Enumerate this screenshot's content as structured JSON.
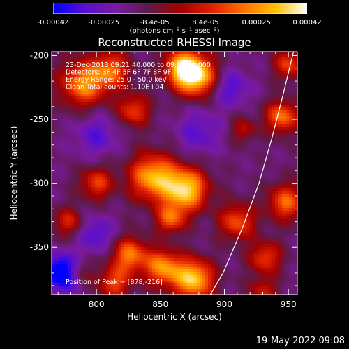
{
  "colorbar": {
    "tick_labels": [
      "-0.00042",
      "-0.00025",
      "-8.4e-05",
      "8.4e-05",
      "0.00025",
      "0.00042"
    ],
    "units_label": "(photons cm⁻² s⁻¹ asec⁻²)",
    "range": [
      -0.00042,
      0.00042
    ],
    "colors": [
      "#0000ff",
      "#5a0fcf",
      "#7a1aa0",
      "#5e1a4a",
      "#a00000",
      "#e02000",
      "#ff7000",
      "#ffc000",
      "#ffffff"
    ]
  },
  "chart_data": {
    "type": "heatmap",
    "title": "Reconstructed RHESSI Image",
    "xlabel": "Heliocentric X (arcsec)",
    "ylabel": "Heliocentric Y (arcsec)",
    "xlim": [
      765,
      957
    ],
    "ylim": [
      -387,
      -197
    ],
    "x_ticks": [
      800,
      850,
      900,
      950
    ],
    "y_ticks": [
      -200,
      -250,
      -300,
      -350
    ],
    "annotations": [
      "23-Dec-2013 09:21:40.000 to 09:27:40.000",
      "Detectors: 3F 4F 5F 6F 7F 8F 9F",
      "Energy Range: 25.0 - 50.0 keV",
      "Clean    Total counts: 1.10E+04"
    ],
    "peak_label": "Position of Peak = [878,-216]",
    "peak_position": [
      878,
      -216
    ],
    "sources": [
      {
        "x": 878,
        "y": -216,
        "amp": 1.0,
        "sigma": 11
      },
      {
        "x": 866,
        "y": -209,
        "amp": 0.7,
        "sigma": 10
      },
      {
        "x": 790,
        "y": -222,
        "amp": 0.75,
        "sigma": 13
      },
      {
        "x": 812,
        "y": -211,
        "amp": 0.6,
        "sigma": 10
      },
      {
        "x": 829,
        "y": -243,
        "amp": 0.55,
        "sigma": 9
      },
      {
        "x": 844,
        "y": -295,
        "amp": 0.85,
        "sigma": 13
      },
      {
        "x": 870,
        "y": -305,
        "amp": 0.95,
        "sigma": 12
      },
      {
        "x": 858,
        "y": -328,
        "amp": 0.6,
        "sigma": 8
      },
      {
        "x": 800,
        "y": -300,
        "amp": 0.55,
        "sigma": 9
      },
      {
        "x": 778,
        "y": -330,
        "amp": 0.45,
        "sigma": 8
      },
      {
        "x": 826,
        "y": -356,
        "amp": 0.7,
        "sigma": 10
      },
      {
        "x": 852,
        "y": -366,
        "amp": 0.75,
        "sigma": 10
      },
      {
        "x": 876,
        "y": -375,
        "amp": 0.95,
        "sigma": 11
      },
      {
        "x": 814,
        "y": -378,
        "amp": 0.55,
        "sigma": 9
      },
      {
        "x": 785,
        "y": -370,
        "amp": 0.45,
        "sigma": 8
      },
      {
        "x": 910,
        "y": -330,
        "amp": 0.6,
        "sigma": 10
      },
      {
        "x": 945,
        "y": -248,
        "amp": 0.7,
        "sigma": 9
      },
      {
        "x": 948,
        "y": -315,
        "amp": 0.65,
        "sigma": 10
      },
      {
        "x": 932,
        "y": -358,
        "amp": 0.55,
        "sigma": 9
      },
      {
        "x": 950,
        "y": -207,
        "amp": 0.55,
        "sigma": 8
      },
      {
        "x": 915,
        "y": -258,
        "amp": 0.35,
        "sigma": 7
      },
      {
        "x": 930,
        "y": -385,
        "amp": 0.4,
        "sigma": 8
      }
    ],
    "negative_regions": [
      {
        "x": 775,
        "y": -370,
        "amp": 0.85,
        "sigma": 10
      },
      {
        "x": 800,
        "y": -340,
        "amp": 0.35,
        "sigma": 10
      },
      {
        "x": 880,
        "y": -260,
        "amp": 0.3,
        "sigma": 12
      },
      {
        "x": 905,
        "y": -225,
        "amp": 0.35,
        "sigma": 10
      },
      {
        "x": 800,
        "y": -262,
        "amp": 0.3,
        "sigma": 12
      }
    ],
    "limb_curve": [
      [
        954,
        -197
      ],
      [
        946,
        -230
      ],
      [
        937,
        -265
      ],
      [
        927,
        -300
      ],
      [
        914,
        -335
      ],
      [
        899,
        -370
      ],
      [
        889,
        -387
      ]
    ]
  },
  "footer": {
    "date": "19-May-2022 09:08"
  }
}
